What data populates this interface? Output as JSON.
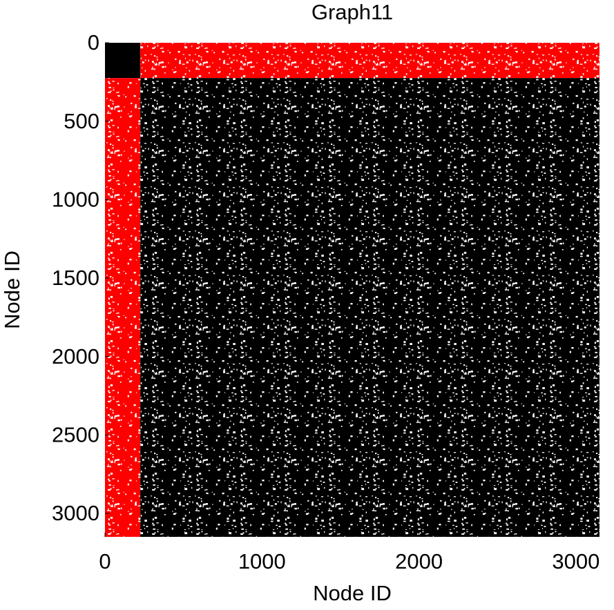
{
  "chart_data": {
    "type": "spy",
    "title": "Graph11",
    "xlabel": "Node ID",
    "ylabel": "Node ID",
    "xlim": [
      0,
      3150
    ],
    "ylim": [
      0,
      3150
    ],
    "y_inverted": true,
    "xticks": [
      0,
      1000,
      2000,
      3000
    ],
    "yticks": [
      0,
      500,
      1000,
      1500,
      2000,
      2500,
      3000
    ],
    "blocks": [
      {
        "x": [
          0,
          225
        ],
        "y": [
          0,
          225
        ],
        "color": "#000000"
      },
      {
        "x": [
          225,
          3150
        ],
        "y": [
          0,
          225
        ],
        "color": "#ff0000"
      },
      {
        "x": [
          0,
          225
        ],
        "y": [
          225,
          3150
        ],
        "color": "#ff0000"
      },
      {
        "x": [
          225,
          3150
        ],
        "y": [
          225,
          3150
        ],
        "color": "#000000"
      }
    ]
  }
}
